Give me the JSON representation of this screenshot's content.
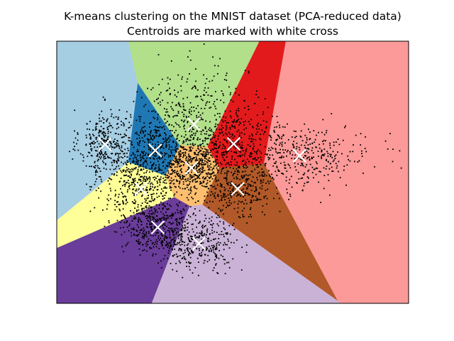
{
  "chart_data": {
    "type": "scatter",
    "title": "K-means clustering on the MNIST dataset (PCA-reduced data)",
    "subtitle": "Centroids are marked with white cross",
    "xlabel": "",
    "ylabel": "",
    "xlim": [
      -30,
      40
    ],
    "ylim": [
      -30,
      30
    ],
    "x_ticks": [],
    "y_ticks": [],
    "grid": false,
    "legend": "none",
    "n_clusters": 10,
    "region_colors": [
      "#a6cee3",
      "#1f78b4",
      "#b2df8a",
      "#e31a1c",
      "#fb9a99",
      "#fdbf6f",
      "#ffff99",
      "#b15928",
      "#6a3d9a",
      "#cab2d6"
    ],
    "point_color": "#000000",
    "centroid_color": "#ffffff",
    "centroid_marker": "x",
    "centroids": [
      {
        "x": -20.4,
        "y": 6.4
      },
      {
        "x": -10.4,
        "y": 5.0
      },
      {
        "x": -2.7,
        "y": 11.0
      },
      {
        "x": 5.2,
        "y": 6.5
      },
      {
        "x": 18.3,
        "y": 3.8
      },
      {
        "x": -3.2,
        "y": 1.0
      },
      {
        "x": -13.2,
        "y": -3.8
      },
      {
        "x": 6.0,
        "y": -3.8
      },
      {
        "x": -9.9,
        "y": -12.6
      },
      {
        "x": -1.7,
        "y": -16.3
      }
    ]
  }
}
